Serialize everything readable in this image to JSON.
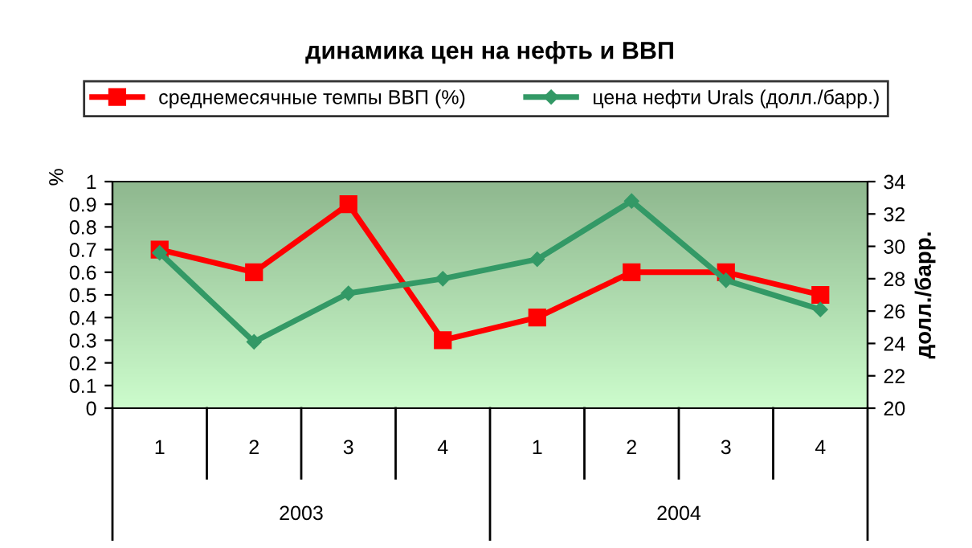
{
  "chart_data": {
    "type": "line",
    "title": "динамика цен на нефть и ВВП",
    "ylabel": "%",
    "y2label": "долл./барр.",
    "categories": [
      "1",
      "2",
      "3",
      "4",
      "1",
      "2",
      "3",
      "4"
    ],
    "annotations": [
      "2003",
      "2004"
    ],
    "series": [
      {
        "name": "среднемесячные темпы ВВП (%)",
        "color": "#ff0000",
        "marker": "square",
        "values": [
          0.7,
          0.6,
          0.9,
          0.3,
          0.4,
          0.6,
          0.6,
          0.5
        ]
      },
      {
        "name": "цена нефти Urals (долл./барр.)",
        "color": "#339966",
        "marker": "diamond",
        "axis": "y2",
        "values": [
          29.6,
          24.1,
          27.1,
          28.0,
          29.2,
          32.8,
          27.9,
          26.1
        ]
      }
    ],
    "ylim": [
      0,
      1
    ],
    "yticks": [
      0,
      0.1,
      0.2,
      0.3,
      0.4,
      0.5,
      0.6,
      0.7,
      0.8,
      0.9,
      1
    ],
    "y2lim": [
      20,
      34
    ],
    "y2ticks": [
      20,
      22,
      24,
      26,
      28,
      30,
      32,
      34
    ],
    "grid": false,
    "legend": "top"
  }
}
